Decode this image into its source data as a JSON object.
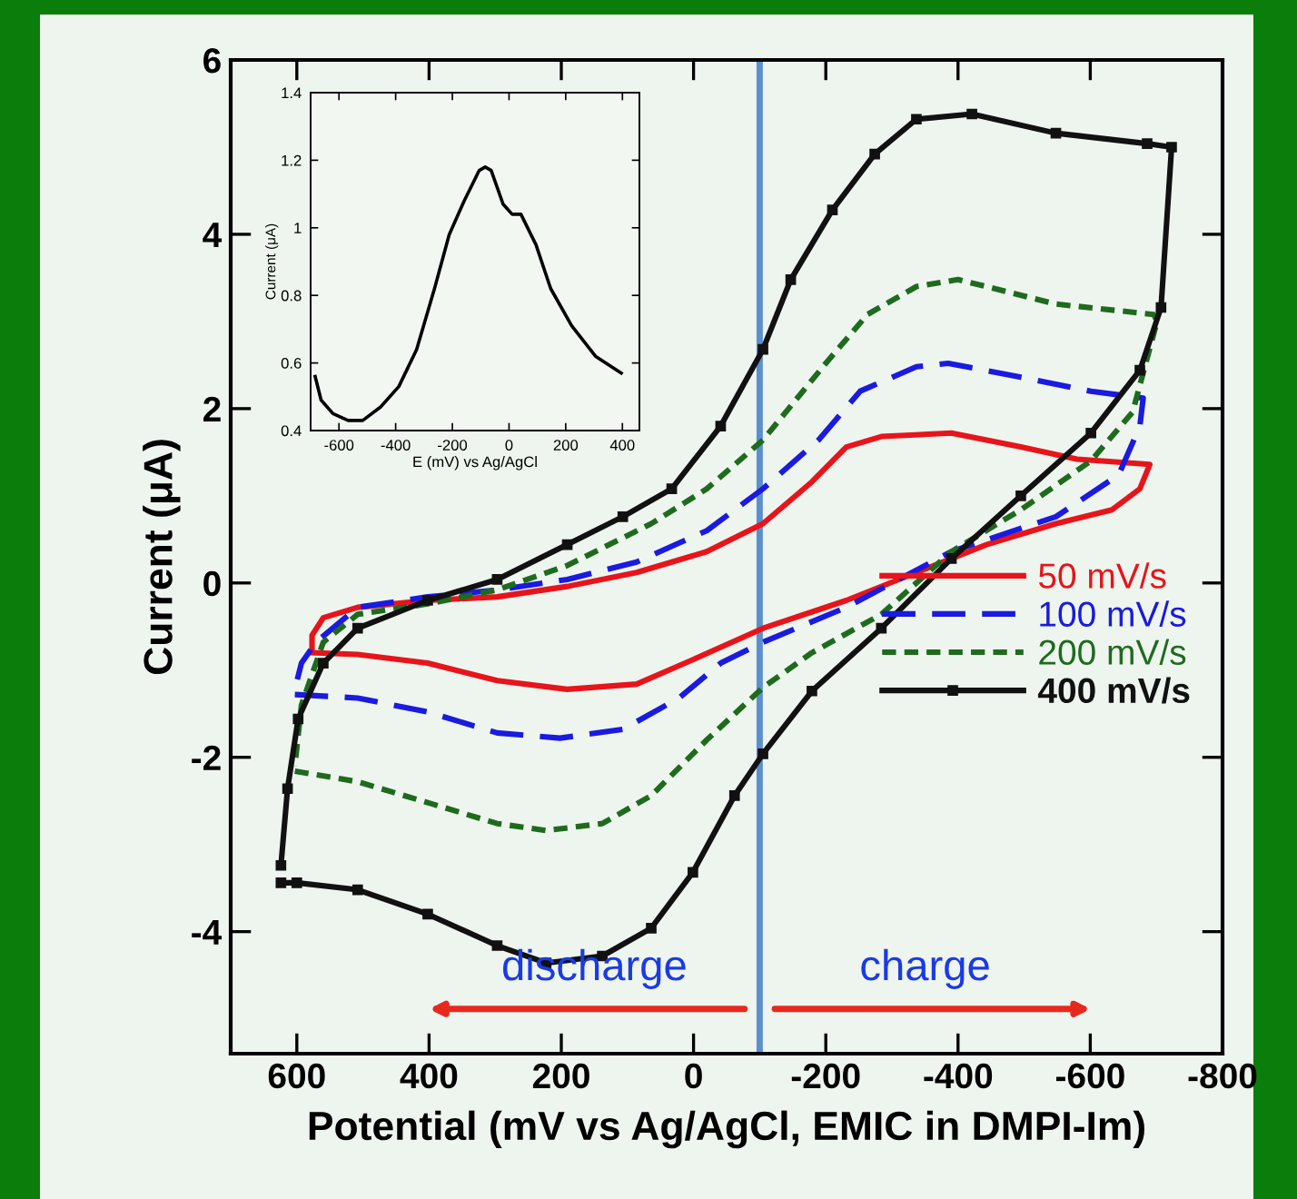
{
  "chart_data": [
    {
      "type": "line",
      "xlabel": "Potential (mV vs Ag/AgCl, EMIC in DMPI-Im)",
      "ylabel": "Current (μA)",
      "xlim": [
        700,
        -800
      ],
      "xticks": [
        600,
        400,
        200,
        0,
        -200,
        -400,
        -600,
        -800
      ],
      "ylim": [
        -5.4,
        6
      ],
      "yticks": [
        -4,
        -2,
        0,
        2,
        4,
        6
      ],
      "grid": false,
      "legend": "right",
      "series": [
        {
          "name": "50 mV/s",
          "color": "#e8141b",
          "line_style": "solid",
          "marker": "none",
          "x": [
            577,
            508,
            402,
            297,
            191,
            86,
            1,
            -105,
            -231,
            -337,
            -443,
            -548,
            -633,
            -675,
            -690,
            -580,
            -495,
            -390,
            -284,
            -231,
            -179,
            -105,
            -20,
            86,
            191,
            297,
            402,
            508,
            560,
            577,
            577
          ],
          "values": [
            -0.8,
            -0.82,
            -0.92,
            -1.12,
            -1.22,
            -1.16,
            -0.88,
            -0.52,
            -0.2,
            0.12,
            0.44,
            0.68,
            0.84,
            1.08,
            1.36,
            1.42,
            1.56,
            1.72,
            1.68,
            1.56,
            1.16,
            0.68,
            0.36,
            0.12,
            -0.04,
            -0.16,
            -0.2,
            -0.28,
            -0.4,
            -0.6,
            -0.76
          ]
        },
        {
          "name": "100 mV/s",
          "color": "#1a1ae0",
          "line_style": "dashed",
          "marker": "none",
          "x": [
            603,
            508,
            402,
            297,
            202,
            107,
            22,
            -41,
            -105,
            -231,
            -390,
            -548,
            -643,
            -675,
            -680,
            -601,
            -495,
            -385,
            -337,
            -252,
            -189,
            -105,
            -20,
            86,
            191,
            297,
            402,
            508,
            571,
            593,
            603
          ],
          "values": [
            -1.28,
            -1.32,
            -1.48,
            -1.72,
            -1.78,
            -1.68,
            -1.32,
            -0.92,
            -0.68,
            -0.28,
            0.36,
            0.76,
            1.24,
            1.8,
            2.12,
            2.2,
            2.36,
            2.52,
            2.48,
            2.2,
            1.64,
            1.08,
            0.6,
            0.24,
            0.04,
            -0.08,
            -0.16,
            -0.28,
            -0.68,
            -0.92,
            -1.22
          ]
        },
        {
          "name": "200 mV/s",
          "color": "#1e6b1e",
          "line_style": "dotted",
          "marker": "none",
          "x": [
            603,
            508,
            402,
            297,
            223,
            138,
            64,
            -20,
            -105,
            -179,
            -284,
            -390,
            -495,
            -601,
            -664,
            -701,
            -696,
            -548,
            -443,
            -400,
            -337,
            -263,
            -200,
            -105,
            -20,
            64,
            191,
            297,
            402,
            508,
            560,
            593,
            603
          ],
          "values": [
            -2.16,
            -2.28,
            -2.52,
            -2.76,
            -2.84,
            -2.76,
            -2.44,
            -1.8,
            -1.2,
            -0.8,
            -0.36,
            0.36,
            0.84,
            1.4,
            1.96,
            3.0,
            3.08,
            3.2,
            3.4,
            3.48,
            3.4,
            3.08,
            2.52,
            1.64,
            1.08,
            0.68,
            0.2,
            -0.08,
            -0.24,
            -0.36,
            -0.68,
            -1.4,
            -2.1
          ]
        },
        {
          "name": "400 mV/s",
          "color": "#111111",
          "line_style": "solid",
          "marker": "square",
          "x": [
            624,
            600,
            508,
            402,
            297,
            223,
            138,
            64,
            1,
            -62,
            -105,
            -179,
            -284,
            -390,
            -495,
            -601,
            -675,
            -707,
            -723,
            -686,
            -548,
            -421,
            -337,
            -274,
            -210,
            -147,
            -105,
            -41,
            33,
            107,
            191,
            297,
            402,
            508,
            560,
            598,
            614,
            624
          ],
          "values": [
            -3.44,
            -3.44,
            -3.52,
            -3.8,
            -4.16,
            -4.36,
            -4.28,
            -3.96,
            -3.32,
            -2.44,
            -1.96,
            -1.24,
            -0.52,
            0.28,
            1.0,
            1.72,
            2.44,
            3.16,
            5.0,
            5.04,
            5.16,
            5.38,
            5.32,
            4.92,
            4.28,
            3.48,
            2.68,
            1.8,
            1.08,
            0.76,
            0.44,
            0.04,
            -0.2,
            -0.52,
            -0.92,
            -1.56,
            -2.36,
            -3.24
          ]
        }
      ],
      "ref_lines": [
        {
          "axis": "x",
          "value": -100,
          "color": "#5b8fd0"
        }
      ],
      "annotations": [
        "discharge",
        "charge"
      ]
    },
    {
      "type": "line",
      "xlabel": "E (mV) vs Ag/AgCl",
      "ylabel": "Current (μA)",
      "xlim": [
        -700,
        460
      ],
      "xticks": [
        -600,
        -400,
        -200,
        0,
        200,
        400
      ],
      "ylim": [
        0.4,
        1.4
      ],
      "yticks": [
        0.4,
        0.6,
        0.8,
        1,
        1.2,
        1.4
      ],
      "grid": false,
      "series": [
        {
          "color": "#000000",
          "x": [
            -684,
            -663,
            -621,
            -568,
            -516,
            -453,
            -389,
            -326,
            -263,
            -211,
            -158,
            -105,
            -84,
            -63,
            -21,
            11,
            42,
            95,
            147,
            221,
            305,
            396
          ],
          "values": [
            0.56,
            0.49,
            0.45,
            0.43,
            0.43,
            0.47,
            0.53,
            0.64,
            0.82,
            0.98,
            1.08,
            1.17,
            1.18,
            1.17,
            1.07,
            1.04,
            1.04,
            0.95,
            0.82,
            0.71,
            0.62,
            0.57
          ]
        }
      ]
    }
  ]
}
